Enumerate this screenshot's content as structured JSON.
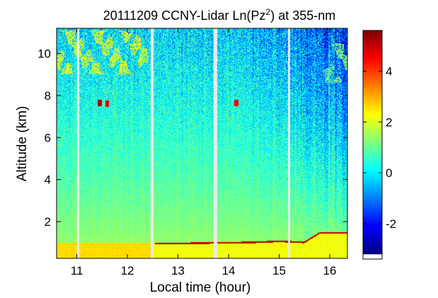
{
  "chart_data": {
    "type": "heatmap",
    "title_prefix": "20111209 CCNY-Lidar Ln(Pz",
    "title_superscript": "2",
    "title_suffix": ") at 355-nm",
    "xlabel": "Local time (hour)",
    "ylabel": "Altitude (km)",
    "xlim": [
      10.6,
      16.35
    ],
    "ylim": [
      0.25,
      11.2
    ],
    "x_ticks": [
      11,
      12,
      13,
      14,
      15,
      16
    ],
    "x_tick_labels": [
      "11",
      "12",
      "13",
      "14",
      "15",
      "16"
    ],
    "y_ticks": [
      2,
      4,
      6,
      8,
      10
    ],
    "y_tick_labels": [
      "2",
      "4",
      "6",
      "8",
      "10"
    ],
    "colorbar": {
      "range": [
        -3.2,
        5.6
      ],
      "ticks": [
        -2,
        0,
        2,
        4
      ],
      "tick_labels": [
        "-2",
        "0",
        "2",
        "4"
      ],
      "colormap": "jet"
    },
    "data_gaps_hour": [
      [
        11.0,
        11.05
      ],
      [
        12.46,
        12.51
      ],
      [
        13.7,
        13.77
      ],
      [
        15.17,
        15.21
      ]
    ],
    "features": {
      "near_surface_layer_km": [
        0.25,
        1.0
      ],
      "surface_layer_value": 2.6,
      "clear_air_low_value": 1.6,
      "clear_air_high_value": -0.2,
      "cirrus_clouds": [
        {
          "t_start": 10.6,
          "t_end": 12.4,
          "z_bottom_km": 9.0,
          "z_top_km": 11.1,
          "value": 2.2
        },
        {
          "t_start": 15.9,
          "t_end": 16.35,
          "z_bottom_km": 8.6,
          "z_top_km": 10.5,
          "value": 1.2
        }
      ],
      "strong_returns": [
        {
          "t": 11.45,
          "z_km": 7.65,
          "value": 5.2
        },
        {
          "t": 11.6,
          "z_km": 7.6,
          "value": 4.8
        },
        {
          "t": 14.15,
          "z_km": 7.65,
          "value": 4.5
        }
      ],
      "boundary_layer_top": [
        {
          "t": 12.6,
          "z_km": 1.0
        },
        {
          "t": 13.0,
          "z_km": 1.0
        },
        {
          "t": 14.5,
          "z_km": 1.05
        },
        {
          "t": 15.0,
          "z_km": 1.1
        },
        {
          "t": 15.5,
          "z_km": 1.05
        },
        {
          "t": 15.8,
          "z_km": 1.5
        },
        {
          "t": 16.35,
          "z_km": 1.5
        }
      ]
    }
  }
}
